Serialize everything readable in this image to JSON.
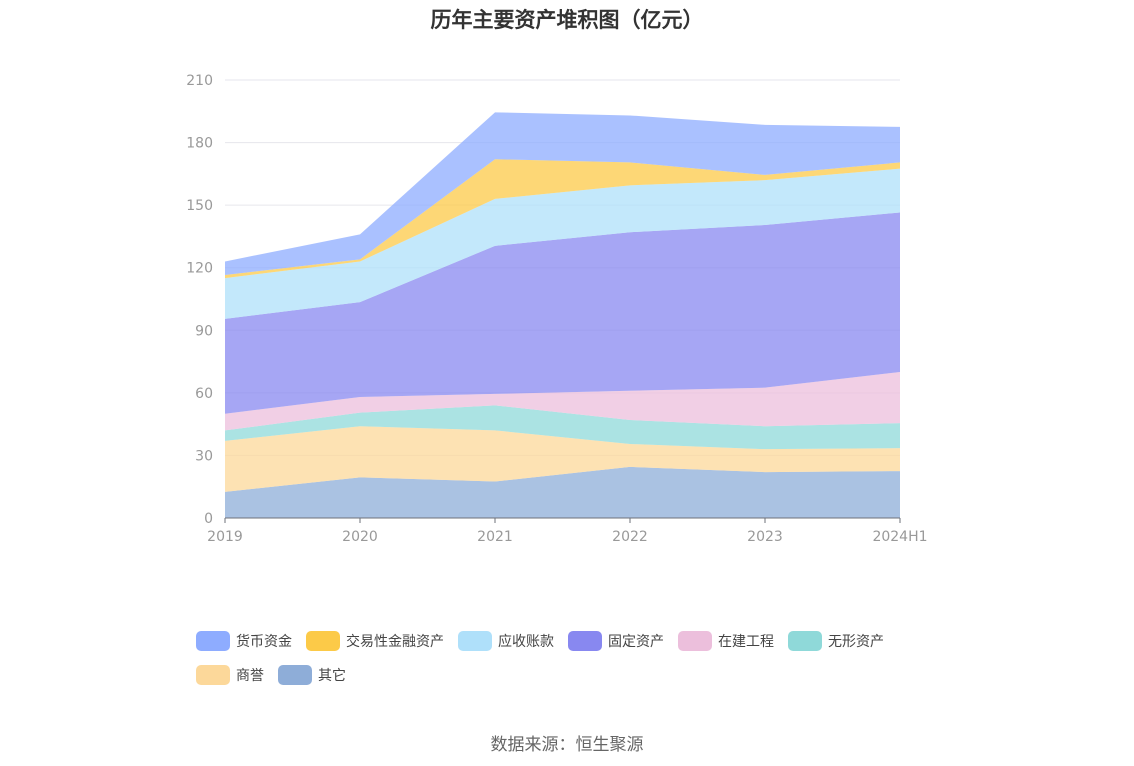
{
  "chart_data": {
    "type": "area",
    "stacked": true,
    "title": "历年主要资产堆积图（亿元）",
    "categories": [
      "2019",
      "2020",
      "2021",
      "2022",
      "2023",
      "2024H1"
    ],
    "ylim": [
      0,
      210
    ],
    "yticks": [
      0,
      30,
      60,
      90,
      120,
      150,
      180,
      210
    ],
    "grid": true,
    "legend_position": "bottom",
    "series": [
      {
        "name": "其它",
        "color": "#8eadd8",
        "values": [
          12.5,
          19.5,
          17.5,
          24.5,
          22,
          22.5
        ]
      },
      {
        "name": "商誉",
        "color": "#fcd89a",
        "values": [
          24.5,
          24.5,
          24.5,
          11,
          11,
          11
        ]
      },
      {
        "name": "无形资产",
        "color": "#8fd9d9",
        "values": [
          5,
          6.5,
          12,
          11.5,
          11,
          12
        ]
      },
      {
        "name": "在建工程",
        "color": "#ecbfdc",
        "values": [
          8,
          7.5,
          5.5,
          14,
          18.5,
          24.5
        ]
      },
      {
        "name": "固定资产",
        "color": "#8888f0",
        "values": [
          45.5,
          45.5,
          71,
          76,
          78,
          76.5
        ]
      },
      {
        "name": "应收账款",
        "color": "#afe0fa",
        "values": [
          19.5,
          19.5,
          22.5,
          22.5,
          21.5,
          21
        ]
      },
      {
        "name": "交易性金融资产",
        "color": "#fcca48",
        "values": [
          1.5,
          1,
          19,
          11,
          2.5,
          3
        ]
      },
      {
        "name": "货币资金",
        "color": "#8eacff",
        "values": [
          6.5,
          12,
          22.5,
          22.5,
          24,
          17
        ]
      }
    ],
    "legend_order": [
      "货币资金",
      "交易性金融资产",
      "应收账款",
      "固定资产",
      "在建工程",
      "无形资产",
      "商誉",
      "其它"
    ]
  },
  "source": "数据来源：恒生聚源"
}
